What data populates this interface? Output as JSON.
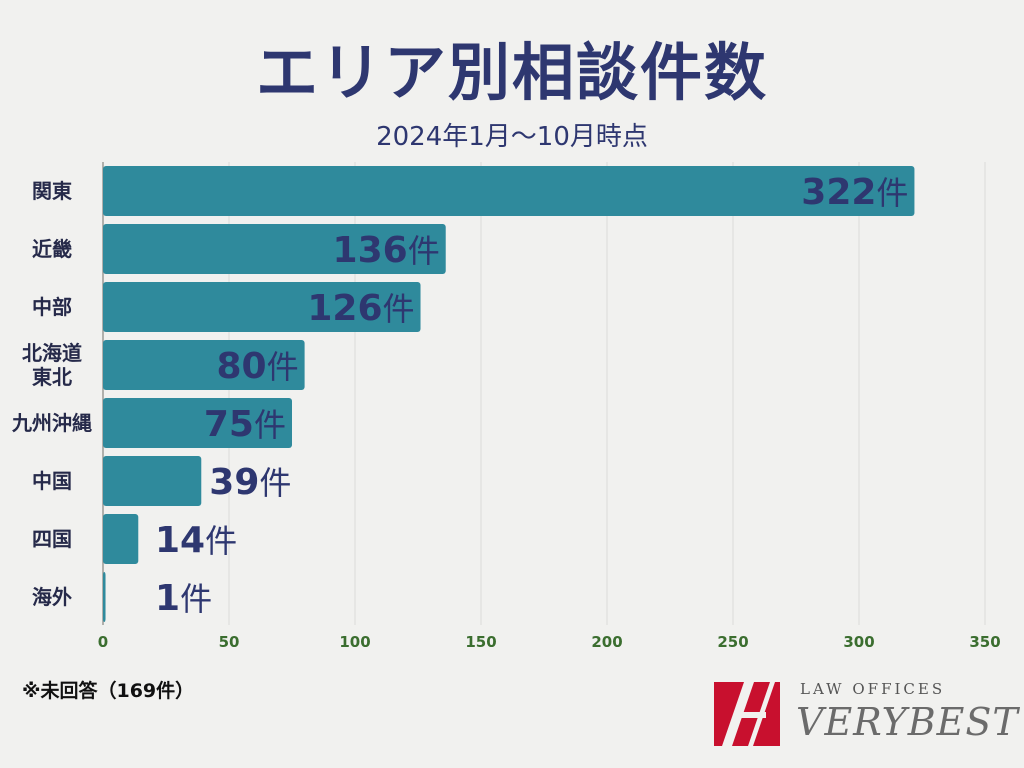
{
  "title": "エリア別相談件数",
  "subtitle": "2024年1月～10月時点",
  "note": "※未回答（169件）",
  "logo": {
    "small": "LAW OFFICES",
    "big": "VERYBEST"
  },
  "colors": {
    "bar": "#2f8a9c",
    "title": "#2e3770",
    "tick": "#3b6e2f",
    "logo_red": "#c8102e"
  },
  "chart_data": {
    "type": "bar",
    "orientation": "horizontal",
    "title": "エリア別相談件数",
    "subtitle": "2024年1月～10月時点",
    "categories": [
      [
        "関東"
      ],
      [
        "近畿"
      ],
      [
        "中部"
      ],
      [
        "北海道",
        "東北"
      ],
      [
        "九州沖縄"
      ],
      [
        "中国"
      ],
      [
        "四国"
      ],
      [
        "海外"
      ]
    ],
    "values": [
      322,
      136,
      126,
      80,
      75,
      39,
      14,
      1
    ],
    "unit": "件",
    "xlim": [
      0,
      350
    ],
    "xticks": [
      0,
      50,
      100,
      150,
      200,
      250,
      300,
      350
    ],
    "grid": true
  }
}
